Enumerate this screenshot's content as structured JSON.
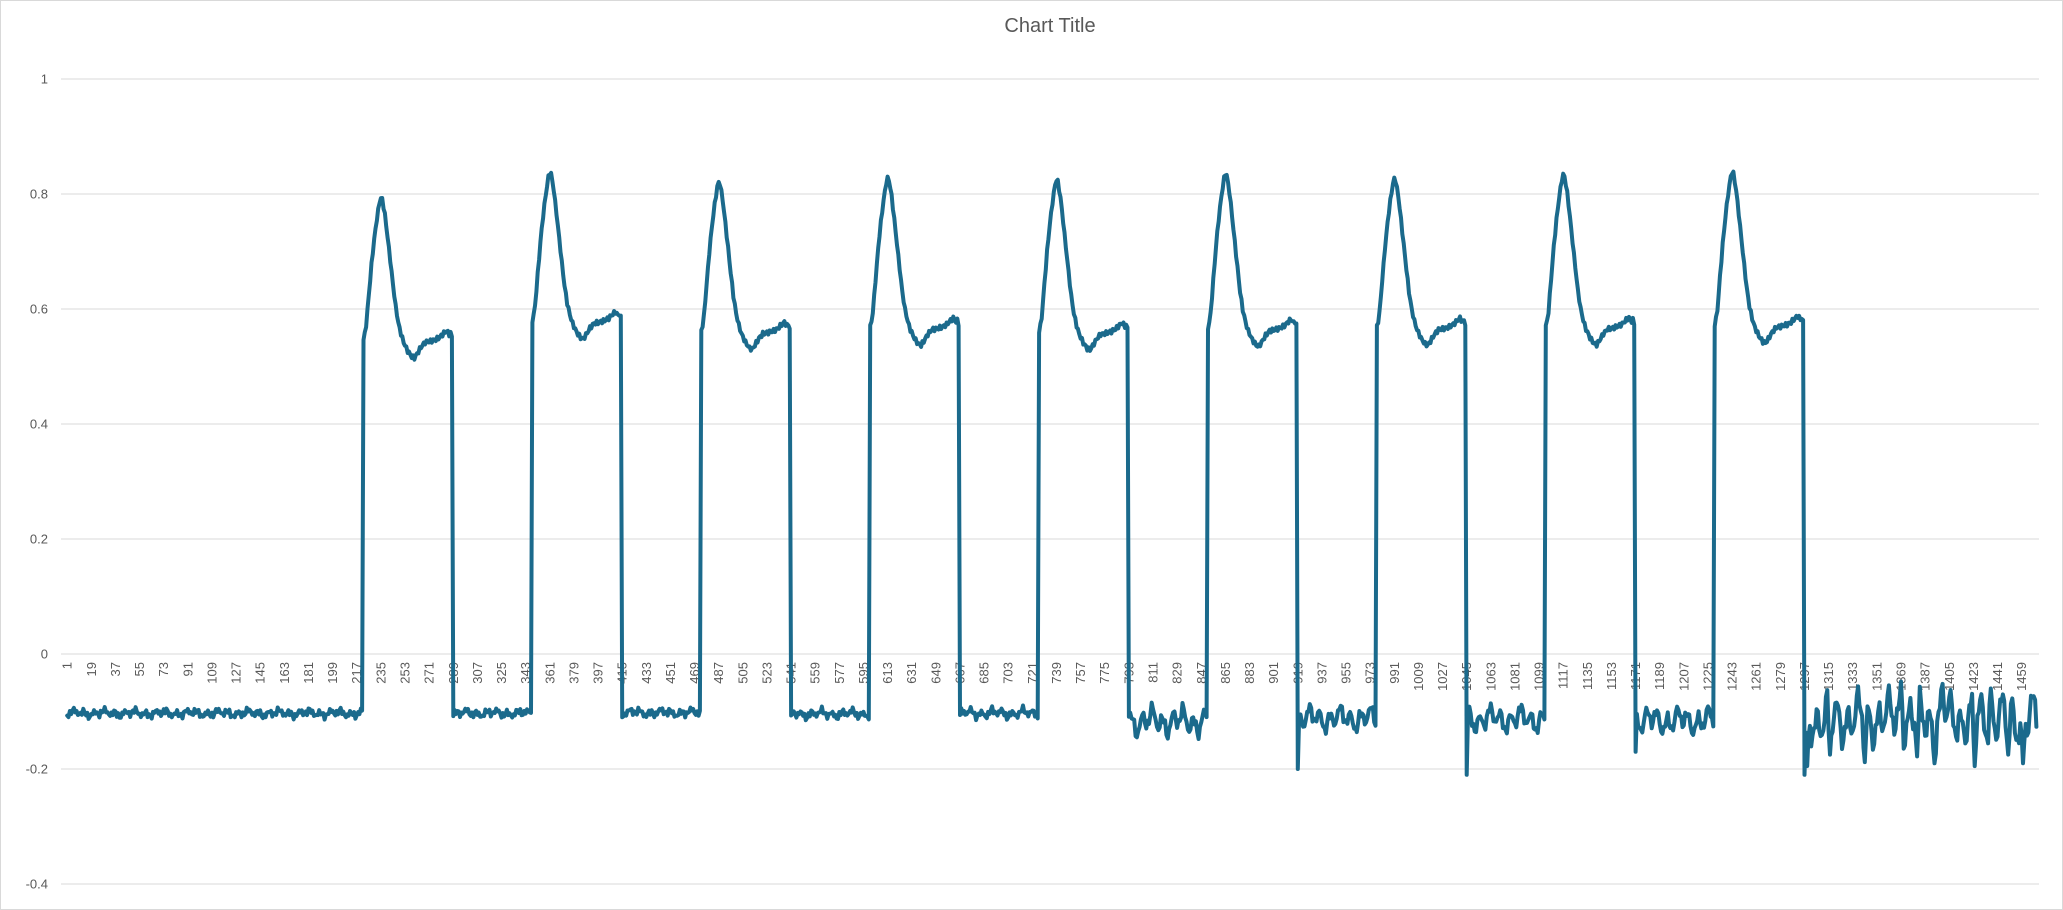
{
  "chart_data": {
    "type": "line",
    "title": "Chart Title",
    "xlabel": "",
    "ylabel": "",
    "grid": true,
    "legend": "none",
    "ylim": [
      -0.4,
      1.0
    ],
    "y_ticks": [
      1,
      0.8,
      0.6,
      0.4,
      0.2,
      0,
      -0.2,
      -0.4
    ],
    "y_tick_labels": [
      "1",
      "0.8",
      "0.6",
      "0.4",
      "0.2",
      "0",
      "-0.2",
      "-0.4"
    ],
    "x_tick_interval": 18,
    "x_count": 1470,
    "x_ticks": [
      1,
      19,
      37,
      55,
      73,
      91,
      109,
      127,
      145,
      163,
      181,
      199,
      217,
      235,
      253,
      271,
      289,
      307,
      325,
      343,
      361,
      379,
      397,
      415,
      433,
      451,
      469,
      487,
      505,
      523,
      541,
      559,
      577,
      595,
      613,
      631,
      649,
      667,
      685,
      703,
      721,
      739,
      757,
      775,
      793,
      811,
      829,
      847,
      865,
      883,
      901,
      919,
      937,
      955,
      973,
      991,
      1009,
      1027,
      1045,
      1063,
      1081,
      1099,
      1117,
      1135,
      1153,
      1171,
      1189,
      1207,
      1225,
      1243,
      1261,
      1279,
      1297,
      1315,
      1333,
      1351,
      1369,
      1387,
      1405,
      1423,
      1441,
      1459
    ],
    "colors": {
      "line": "#1B6A8C",
      "grid": "#D9D9D9",
      "labels": "#595959",
      "title": "#595959",
      "border": "#D9D9D9",
      "background": "#FFFFFF"
    },
    "line_width": 4,
    "baseline": -0.103,
    "segments": [
      {
        "type": "noise",
        "from": 1,
        "to": 221,
        "base": -0.103,
        "amp": 0.008,
        "ph": 3.1
      },
      {
        "type": "pulse",
        "start": 222,
        "peak": 0.793,
        "plateau": 0.552,
        "fall_to": -0.108
      },
      {
        "type": "noise",
        "from": 290,
        "to": 347,
        "base": -0.103,
        "amp": 0.008,
        "ph": 1.7
      },
      {
        "type": "pulse",
        "start": 348,
        "peak": 0.837,
        "plateau": 0.585,
        "fall_to": -0.11
      },
      {
        "type": "noise",
        "from": 416,
        "to": 473,
        "base": -0.102,
        "amp": 0.008,
        "ph": 2.3
      },
      {
        "type": "pulse",
        "start": 474,
        "peak": 0.82,
        "plateau": 0.567,
        "fall_to": -0.107
      },
      {
        "type": "noise",
        "from": 542,
        "to": 599,
        "base": -0.104,
        "amp": 0.009,
        "ph": 4.2
      },
      {
        "type": "pulse",
        "start": 600,
        "peak": 0.827,
        "plateau": 0.574,
        "fall_to": -0.106
      },
      {
        "type": "noise",
        "from": 668,
        "to": 725,
        "base": -0.103,
        "amp": 0.01,
        "ph": 0.8
      },
      {
        "type": "pulse",
        "start": 726,
        "peak": 0.824,
        "plateau": 0.566,
        "fall_to": -0.109
      },
      {
        "type": "noise",
        "from": 794,
        "to": 851,
        "base": -0.117,
        "amp": 0.032,
        "ph": 2.9
      },
      {
        "type": "pulse",
        "start": 852,
        "peak": 0.835,
        "plateau": 0.572,
        "fall_to": -0.2
      },
      {
        "type": "noise",
        "from": 920,
        "to": 977,
        "base": -0.112,
        "amp": 0.027,
        "ph": 1.2
      },
      {
        "type": "pulse",
        "start": 978,
        "peak": 0.826,
        "plateau": 0.574,
        "fall_to": -0.21
      },
      {
        "type": "noise",
        "from": 1046,
        "to": 1103,
        "base": -0.113,
        "amp": 0.028,
        "ph": 3.8
      },
      {
        "type": "pulse",
        "start": 1104,
        "peak": 0.833,
        "plateau": 0.575,
        "fall_to": -0.17
      },
      {
        "type": "noise",
        "from": 1172,
        "to": 1229,
        "base": -0.116,
        "amp": 0.03,
        "ph": 2.2
      },
      {
        "type": "pulse",
        "start": 1230,
        "peak": 0.838,
        "plateau": 0.578,
        "fall_to": -0.21
      },
      {
        "type": "noise",
        "from": 1298,
        "to": 1470,
        "base": -0.112,
        "amp": 0.058,
        "ph": 4.9
      }
    ],
    "pulse_shape": [
      [
        0,
        "l",
        -0.005
      ],
      [
        1,
        "l",
        0.005
      ],
      [
        2,
        "l",
        0.02
      ],
      [
        4,
        "m",
        0.3
      ],
      [
        6,
        "m",
        0.52
      ],
      [
        8,
        "m",
        0.7
      ],
      [
        10,
        "m",
        0.85
      ],
      [
        12,
        "m",
        0.97
      ],
      [
        13,
        "m",
        1.0
      ],
      [
        14,
        "m",
        0.99
      ],
      [
        16,
        "m",
        0.88
      ],
      [
        18,
        "m",
        0.72
      ],
      [
        20,
        "m",
        0.55
      ],
      [
        22,
        "m",
        0.38
      ],
      [
        24,
        "m",
        0.22
      ],
      [
        26,
        "m",
        0.1
      ],
      [
        28,
        "m",
        0.02
      ],
      [
        30,
        "l",
        -0.01
      ],
      [
        33,
        "l",
        -0.025
      ],
      [
        36,
        "l",
        -0.035
      ],
      [
        38,
        "l",
        -0.037
      ],
      [
        40,
        "l",
        -0.03
      ],
      [
        43,
        "l",
        -0.018
      ],
      [
        46,
        "l",
        -0.01
      ],
      [
        50,
        "l",
        -0.008
      ],
      [
        54,
        "l",
        -0.005
      ],
      [
        57,
        "l",
        -0.001
      ],
      [
        60,
        "l",
        0.006
      ],
      [
        62,
        "l",
        0.01
      ],
      [
        64,
        "l",
        0.004
      ],
      [
        65,
        "l",
        0.006
      ],
      [
        66,
        "l",
        0.0
      ],
      [
        67,
        "f",
        0
      ]
    ],
    "spikes": [
      {
        "at": 1299,
        "v": -0.195
      },
      {
        "at": 1316,
        "v": -0.175
      },
      {
        "at": 1342,
        "v": -0.188
      },
      {
        "at": 1369,
        "v": -0.048
      },
      {
        "at": 1381,
        "v": -0.178
      },
      {
        "at": 1394,
        "v": -0.19
      },
      {
        "at": 1400,
        "v": -0.052
      },
      {
        "at": 1424,
        "v": -0.195
      },
      {
        "at": 1436,
        "v": -0.06
      },
      {
        "at": 1449,
        "v": -0.175
      },
      {
        "at": 1460,
        "v": -0.19
      }
    ]
  }
}
